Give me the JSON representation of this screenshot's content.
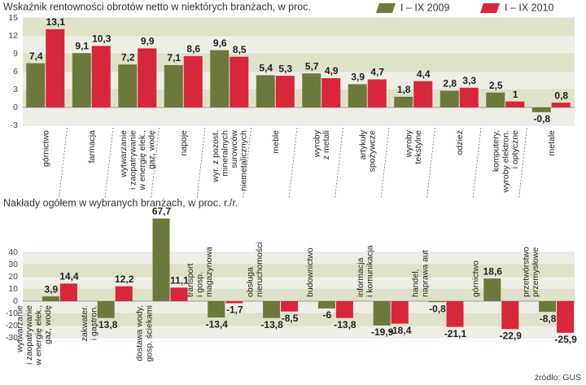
{
  "chart_data": [
    {
      "type": "bar",
      "title": "Wskaźnik rentowności obrotów netto w niektórych branżach, w proc.",
      "categories": [
        "górnictwo",
        "farmacja",
        "wytwarzanie\ni zaopatrywanie\nw energię elek.,\ngaz, wodę",
        "napoje",
        "wyr. z pozost.\nmineralnych\nsurowców\nniemetalicznych",
        "meble",
        "wyroby\nz metali",
        "artykuły\nspożywcze",
        "wyroby\ntekstylne",
        "odzież",
        "komputery,\nwyroby elektron.\ni optyczne",
        "metale"
      ],
      "series": [
        {
          "name": "I – IX 2009",
          "color": "#6b7a3c",
          "values": [
            7.4,
            9.1,
            7.2,
            7.1,
            9.6,
            5.4,
            5.7,
            3.9,
            1.8,
            2.8,
            2.5,
            -0.8
          ],
          "value_labels": [
            "7,4",
            "9,1",
            "7,2",
            "7,1",
            "9,6",
            "5,4",
            "5,7",
            "3,9",
            "1,8",
            "2,8",
            "2,5",
            "-0,8"
          ]
        },
        {
          "name": "I – IX 2010",
          "color": "#d8263a",
          "values": [
            13.1,
            10.3,
            9.9,
            8.6,
            8.5,
            5.3,
            4.9,
            4.7,
            4.4,
            3.3,
            1,
            0.8
          ],
          "value_labels": [
            "13,1",
            "10,3",
            "9,9",
            "8,6",
            "8,5",
            "5,3",
            "4,9",
            "4,7",
            "4,4",
            "3,3",
            "1",
            "0,8"
          ]
        }
      ],
      "ylim": [
        -3,
        15
      ],
      "yticks": [
        -3,
        0,
        3,
        6,
        9,
        12,
        15
      ],
      "legend": "top-right"
    },
    {
      "type": "bar",
      "title": "Nakłady ogółem w wybranych branżach, w proc. r./r.",
      "categories": [
        "wytwarzanie\ni zaopatrywanie\nw energię elek.,\ngaz, wodę",
        "zakwater.\ni gastron.",
        "dostawa wody,\ngosp. ściekami",
        "transport\ni gosp.\nmagazynowa",
        "obsługa\nnieruchomości",
        "budownictwo",
        "informacja\ni komunikacja",
        "handel,\nnaprawa aut",
        "górnictwo",
        "przetwórstwo\nprzemysłowe"
      ],
      "series": [
        {
          "color": "#6b7a3c",
          "values": [
            3.9,
            -13.8,
            67.7,
            -13.4,
            -13.8,
            -6,
            -19.9,
            -0.8,
            18.6,
            -8.8
          ],
          "value_labels": [
            "3,9",
            "-13,8",
            "67,7",
            "-13,4",
            "-13,8",
            "-6",
            "-19,9",
            "-0,8",
            "18,6",
            "-8,8"
          ]
        },
        {
          "color": "#d8263a",
          "values": [
            14.4,
            12.2,
            11.1,
            -1.7,
            -8.5,
            -13.8,
            -18.4,
            -21.1,
            -22.9,
            -25.9
          ],
          "value_labels": [
            "14,4",
            "12,2",
            "11,1",
            "-1,7",
            "-8,5",
            "-13,8",
            "-18,4",
            "-21,1",
            "-22,9",
            "-25,9"
          ]
        }
      ],
      "ylim": [
        -30,
        40
      ],
      "yticks": [
        -30,
        -20,
        -10,
        0,
        10,
        20,
        30,
        40
      ],
      "source": "źródło: GUS"
    }
  ]
}
